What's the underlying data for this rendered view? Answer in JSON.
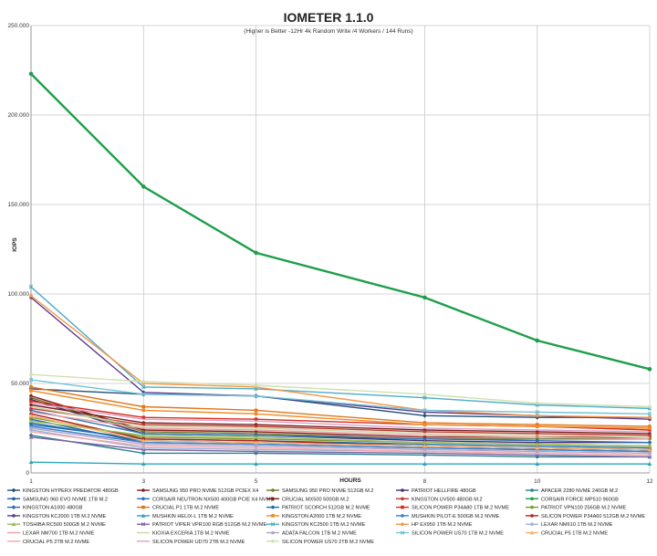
{
  "chart_data": {
    "type": "line",
    "title": "IOMETER 1.1.0",
    "subtitle": "(Higher is Better -12Hr 4k Random Write /4 Workers / 144 Runs)",
    "xlabel": "HOURS",
    "ylabel": "IOPS",
    "x": [
      1,
      3,
      5,
      8,
      10,
      12
    ],
    "x_tick_labels": [
      "1",
      "3",
      "5",
      "8",
      "10",
      "12"
    ],
    "ylim": [
      0,
      250000
    ],
    "y_ticks": [
      0,
      50000,
      100000,
      150000,
      200000,
      250000
    ],
    "y_tick_labels": [
      "0",
      "50.000",
      "100.000",
      "150.000",
      "200.000",
      "250.000"
    ],
    "grid": true,
    "legend_position": "bottom",
    "series": [
      {
        "name": "KINGSTON HYPERX PREDATOR 480GB",
        "color": "#1f4e79",
        "marker": "diamond",
        "values": [
          47000,
          44000,
          43000,
          32000,
          31000,
          31000
        ]
      },
      {
        "name": "SAMSUNG 950 PRO NVME 512GB PCIEX X4",
        "color": "#8b1a1a",
        "marker": "circle",
        "values": [
          43000,
          24000,
          23000,
          20000,
          20000,
          20000
        ]
      },
      {
        "name": "SAMSUNG 950 PRO NVME 512GB M.2",
        "color": "#6b7a2a",
        "marker": "circle",
        "values": [
          42000,
          23000,
          22000,
          19000,
          19000,
          19000
        ]
      },
      {
        "name": "PATRIOT HELLFIRE 480GB",
        "color": "#4b2c6f",
        "marker": "circle",
        "values": [
          41000,
          22000,
          21000,
          18000,
          17000,
          17000
        ]
      },
      {
        "name": "APACER 2280 NVME 240GB M.2",
        "color": "#2a7f8f",
        "marker": "circle",
        "values": [
          21000,
          11000,
          11000,
          10000,
          9000,
          9000
        ]
      },
      {
        "name": "SAMSUNG 960 EVO NVME 1TB M.2",
        "color": "#1f5fa8",
        "marker": "circle",
        "values": [
          30000,
          17000,
          16000,
          14000,
          13000,
          12000
        ]
      },
      {
        "name": "CORSAIR NEUTRON NX500 400GB PCIE X4 NVME",
        "color": "#2e6fb5",
        "marker": "circle",
        "values": [
          35000,
          22000,
          21000,
          19000,
          18000,
          17000
        ]
      },
      {
        "name": "CRUCIAL MX500 500GB M.2",
        "color": "#7a1f1f",
        "marker": "circle",
        "values": [
          38000,
          28000,
          27000,
          24000,
          23000,
          22000
        ]
      },
      {
        "name": "KINGSTON UV500 480GB M.2",
        "color": "#c0392b",
        "marker": "circle",
        "values": [
          36000,
          27000,
          26000,
          23000,
          22000,
          21000
        ]
      },
      {
        "name": "CORSAIR FORCE MP510 960GB",
        "color": "#1e9e4a",
        "marker": "circle",
        "values": [
          223000,
          160000,
          123000,
          98000,
          74000,
          58000
        ]
      },
      {
        "name": "KINGSTON A1000 480GB",
        "color": "#2b6cb0",
        "marker": "diamond",
        "values": [
          28000,
          18000,
          17000,
          15000,
          14000,
          13000
        ]
      },
      {
        "name": "CRUCIAL P1 1TB M.2 NVME",
        "color": "#e0761a",
        "marker": "square",
        "values": [
          48000,
          37000,
          35000,
          28000,
          27000,
          26000
        ]
      },
      {
        "name": "PATRIOT SCORCH 512GB M.2 NVME",
        "color": "#1a6fb0",
        "marker": "circle",
        "values": [
          27000,
          19000,
          18000,
          16000,
          15000,
          14000
        ]
      },
      {
        "name": "SILICON POWER P34A80 1TB M.2 NVME",
        "color": "#d62d20",
        "marker": "square",
        "values": [
          40000,
          31000,
          30000,
          27000,
          26000,
          24000
        ]
      },
      {
        "name": "PATRIOT VPN100 256GB M.2 NVME",
        "color": "#7a9a2a",
        "marker": "circle",
        "values": [
          31000,
          20000,
          19000,
          17000,
          16000,
          15000
        ]
      },
      {
        "name": "KINGSTON KC2000 1TB M.2 NVME",
        "color": "#5b3a8f",
        "marker": "circle",
        "values": [
          98000,
          45000,
          43000,
          34000,
          32000,
          30000
        ]
      },
      {
        "name": "MUSHKIN HELIX-L 1TB M.2 NVME",
        "color": "#2aa6c0",
        "marker": "triangle",
        "values": [
          6000,
          5000,
          5000,
          5000,
          5000,
          5000
        ]
      },
      {
        "name": "KINGSTON A2000 1TB M.2 NVME",
        "color": "#f08a24",
        "marker": "square",
        "values": [
          46000,
          35000,
          33000,
          27000,
          26000,
          25000
        ]
      },
      {
        "name": "MUSHKIN PILOT-E 500GB M.2 NVME",
        "color": "#3b7fc4",
        "marker": "circle",
        "values": [
          26000,
          17000,
          16000,
          14000,
          13000,
          12000
        ]
      },
      {
        "name": "SILICON POWER P34A60 512GB M.2 NVME",
        "color": "#b22222",
        "marker": "circle",
        "values": [
          33000,
          19000,
          18000,
          15000,
          14000,
          13000
        ]
      },
      {
        "name": "TOSHIBA RC500 500GB M.2 NVME",
        "color": "#9bbb59",
        "marker": "triangle",
        "values": [
          29000,
          21000,
          20000,
          17000,
          16000,
          15000
        ]
      },
      {
        "name": "PATRIOT VIPER VPR100 RGB 512GB M.2 NVME",
        "color": "#8064a2",
        "marker": "x",
        "values": [
          20000,
          13000,
          12000,
          11000,
          10000,
          9000
        ]
      },
      {
        "name": "KINGSTON KC2500 1TB M.2 NVME",
        "color": "#4bacc6",
        "marker": "x",
        "values": [
          104000,
          48000,
          47000,
          42000,
          38000,
          36000
        ]
      },
      {
        "name": "HP EX950 1TB M.2 NVME",
        "color": "#f79646",
        "marker": "circle",
        "values": [
          99000,
          50000,
          48000,
          35000,
          32000,
          31000
        ]
      },
      {
        "name": "LEXAR NM610 1TB M.2 NVME",
        "color": "#9cb4d8",
        "marker": "circle",
        "values": [
          24000,
          14000,
          13000,
          12000,
          11000,
          10000
        ]
      },
      {
        "name": "LEXAR NM700 1TB M.2 NVME",
        "color": "#e5a0a0",
        "marker": "none",
        "values": [
          34000,
          25000,
          24000,
          21000,
          20000,
          19000
        ]
      },
      {
        "name": "KIOXIA EXCERIA 1TB M.2 NVME",
        "color": "#c8d7a8",
        "marker": "none",
        "values": [
          37000,
          26000,
          25000,
          22000,
          21000,
          20000
        ]
      },
      {
        "name": "ADATA FALCON 1TB M.2 NVME",
        "color": "#b3a2c7",
        "marker": "circle",
        "values": [
          25000,
          16000,
          15000,
          13000,
          12000,
          11000
        ]
      },
      {
        "name": "SILICON POWER US70 1TB M.2 NVME",
        "color": "#6fc3d8",
        "marker": "x",
        "values": [
          52000,
          44000,
          43000,
          35000,
          34000,
          33000
        ]
      },
      {
        "name": "CRUCIAL P5 1TB M.2 NVME",
        "color": "#f6b26b",
        "marker": "triangle",
        "values": [
          32000,
          18000,
          17000,
          15000,
          14000,
          13000
        ]
      },
      {
        "name": "CRUCIAL P5 2TB M.2 NVME",
        "color": "#f4a7a7",
        "marker": "none",
        "values": [
          23000,
          15000,
          14000,
          12000,
          11000,
          10000
        ]
      },
      {
        "name": "SILICON POWER UD70 2TB M.2 NVME",
        "color": "#d9a0c8",
        "marker": "none",
        "values": [
          39000,
          30000,
          29000,
          25000,
          24000,
          23000
        ]
      },
      {
        "name": "SILICON POWER US70 2TB M.2 NVME",
        "color": "#cfe0b0",
        "marker": "circle",
        "values": [
          55000,
          51000,
          49000,
          44000,
          39000,
          37000
        ]
      }
    ]
  }
}
